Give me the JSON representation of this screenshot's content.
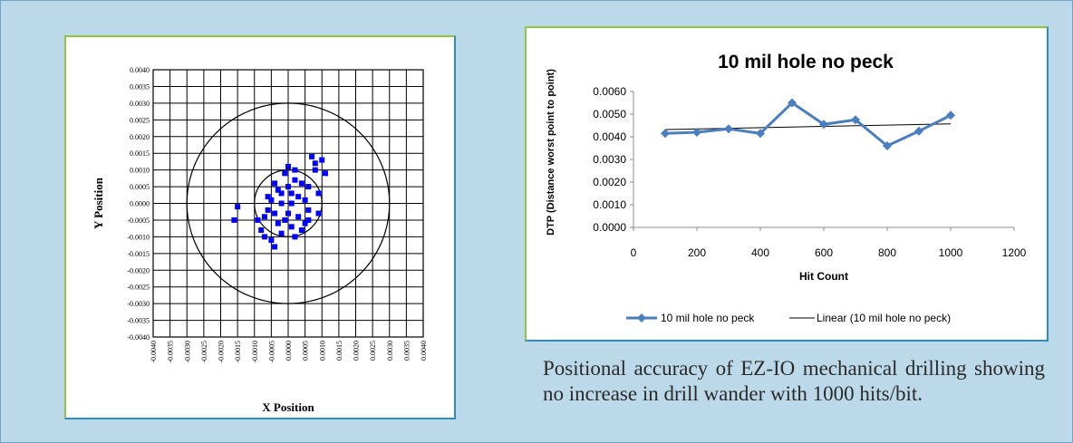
{
  "caption": "Positional accuracy of EZ-IO mechanical drilling showing no increase in drill wander with 1000 hits/bit.",
  "colors": {
    "panel_bg": "#bcd9ea",
    "frame_green": "#8ec63f",
    "frame_blue": "#2e8bc9",
    "scatter_point": "#0000ff",
    "line_series": "#4a7ebf"
  },
  "chart_data": [
    {
      "type": "scatter",
      "title": "",
      "xlabel": "X Position",
      "ylabel": "Y Position",
      "xlim": [
        -0.004,
        0.004
      ],
      "ylim": [
        -0.004,
        0.004
      ],
      "grid": true,
      "tick_step": 0.0005,
      "x_ticks": [
        "-0.0040",
        "-0.0035",
        "-0.0030",
        "-0.0025",
        "-0.0020",
        "-0.0015",
        "-0.0010",
        "-0.0005",
        "0.0000",
        "0.0005",
        "0.0010",
        "0.0015",
        "0.0020",
        "0.0025",
        "0.0030",
        "0.0035",
        "0.0040"
      ],
      "y_ticks": [
        "0.0040",
        "0.0035",
        "0.0030",
        "0.0025",
        "0.0020",
        "0.0015",
        "0.0010",
        "0.0005",
        "0.0000",
        "-0.0005",
        "-0.0010",
        "-0.0015",
        "-0.0020",
        "-0.0025",
        "-0.0030",
        "-0.0035",
        "-0.0040"
      ],
      "circles": [
        {
          "cx": 0,
          "cy": 0,
          "r": 0.003
        },
        {
          "cx": 0,
          "cy": 0,
          "r": 0.001
        }
      ],
      "points": [
        [
          -0.0016,
          -0.0005
        ],
        [
          -0.0015,
          -0.0001
        ],
        [
          -0.0009,
          -0.0005
        ],
        [
          -0.0008,
          -0.0008
        ],
        [
          -0.0007,
          -0.001
        ],
        [
          -0.0006,
          -0.0002
        ],
        [
          -0.0006,
          0.0002
        ],
        [
          -0.0005,
          -0.0011
        ],
        [
          -0.0004,
          -0.0013
        ],
        [
          -0.0004,
          0.0006
        ],
        [
          -0.0003,
          -0.0006
        ],
        [
          -0.0003,
          0.0004
        ],
        [
          -0.0002,
          -0.0009
        ],
        [
          -0.0002,
          0.0
        ],
        [
          -0.0001,
          0.0009
        ],
        [
          0.0,
          0.0011
        ],
        [
          0.0,
          -0.0003
        ],
        [
          0.0001,
          0.0003
        ],
        [
          0.0001,
          -0.0007
        ],
        [
          0.0002,
          0.001
        ],
        [
          0.0002,
          -0.001
        ],
        [
          0.0003,
          0.0002
        ],
        [
          0.0003,
          -0.0004
        ],
        [
          0.0004,
          0.0006
        ],
        [
          0.0005,
          -0.0006
        ],
        [
          0.0005,
          0.0001
        ],
        [
          0.0006,
          -0.0002
        ],
        [
          0.0006,
          0.0005
        ],
        [
          0.0007,
          0.0014
        ],
        [
          0.0008,
          0.001
        ],
        [
          0.0008,
          0.0012
        ],
        [
          0.0009,
          0.0003
        ],
        [
          0.0009,
          -0.0003
        ],
        [
          0.001,
          0.0013
        ],
        [
          0.0011,
          0.0009
        ],
        [
          -0.0005,
          0.0001
        ],
        [
          -0.0004,
          -0.0003
        ],
        [
          -0.0001,
          -0.0005
        ],
        [
          0.0,
          0.0005
        ],
        [
          0.0002,
          0.0007
        ],
        [
          0.0004,
          -0.0008
        ],
        [
          0.0006,
          -0.0005
        ],
        [
          -0.0007,
          -0.0004
        ],
        [
          -0.0002,
          0.0003
        ],
        [
          0.0001,
          0.0
        ]
      ]
    },
    {
      "type": "line",
      "title": "10 mil hole no peck",
      "xlabel": "Hit Count",
      "ylabel": "DTP (Distance worst point to point)",
      "xlim": [
        0,
        1200
      ],
      "ylim": [
        0,
        0.006
      ],
      "x_ticks": [
        0,
        200,
        400,
        600,
        800,
        1000,
        1200
      ],
      "y_ticks": [
        "0.0000",
        "0.0010",
        "0.0020",
        "0.0030",
        "0.0040",
        "0.0050",
        "0.0060"
      ],
      "x": [
        100,
        200,
        300,
        400,
        500,
        600,
        700,
        800,
        900,
        1000
      ],
      "series": [
        {
          "name": "10 mil hole no peck",
          "values": [
            0.00415,
            0.0042,
            0.00435,
            0.00415,
            0.0055,
            0.00455,
            0.00475,
            0.0036,
            0.00425,
            0.00495
          ]
        }
      ],
      "trendline": {
        "name": "Linear (10 mil hole no peck)",
        "type": "linear"
      }
    }
  ]
}
